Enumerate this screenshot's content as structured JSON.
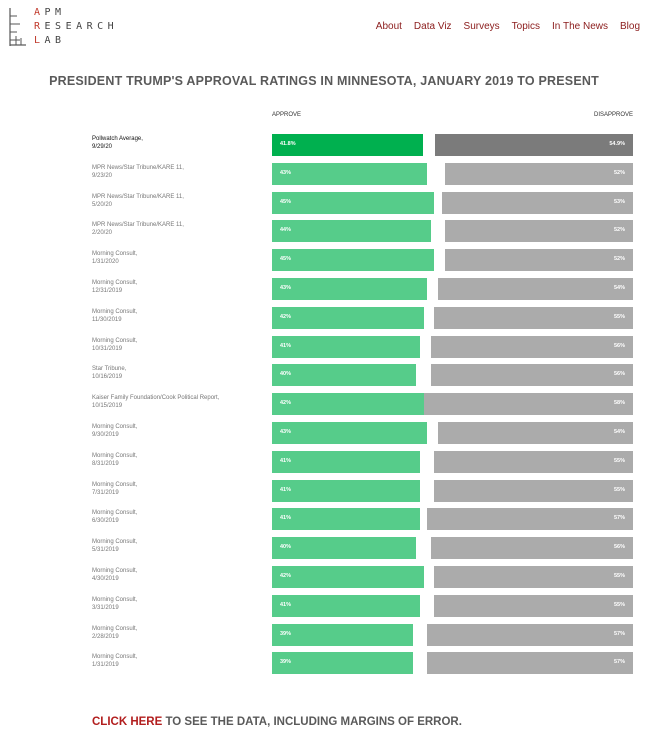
{
  "header": {
    "logo": {
      "line1": "APM",
      "line2": "RESEARCH",
      "line3": "LAB"
    },
    "nav": [
      {
        "label": "About"
      },
      {
        "label": "Data Viz"
      },
      {
        "label": "Surveys"
      },
      {
        "label": "Topics"
      },
      {
        "label": "In The News"
      },
      {
        "label": "Blog"
      }
    ]
  },
  "footer": {
    "link_text": "CLICK HERE",
    "rest_text": " TO SEE THE DATA, INCLUDING MARGINS OF ERROR."
  },
  "colors": {
    "approve": "#56cc8a",
    "approve_average": "#00b04f",
    "disapprove": "#ababab",
    "disapprove_average": "#7b7b7b",
    "nav": "#8b1c1c",
    "link": "#b21e1e"
  },
  "chart_data": {
    "type": "bar",
    "title": "PRESIDENT TRUMP'S APPROVAL RATINGS IN MINNESOTA, JANUARY 2019 TO PRESENT",
    "approve_label": "APPROVE",
    "disapprove_label": "DISAPPROVE",
    "scale_max": 100,
    "rows": [
      {
        "source": "Pollwatch Average,",
        "date": "9/29/20",
        "approve": 41.8,
        "disapprove": 54.9,
        "approve_text": "41.8%",
        "disapprove_text": "54.9%",
        "average": true
      },
      {
        "source": "MPR News/Star Tribune/KARE 11,",
        "date": "9/23/20",
        "approve": 43,
        "disapprove": 52,
        "approve_text": "43%",
        "disapprove_text": "52%"
      },
      {
        "source": "MPR News/Star Tribune/KARE 11,",
        "date": "5/20/20",
        "approve": 45,
        "disapprove": 53,
        "approve_text": "45%",
        "disapprove_text": "53%"
      },
      {
        "source": "MPR News/Star Tribune/KARE 11,",
        "date": "2/20/20",
        "approve": 44,
        "disapprove": 52,
        "approve_text": "44%",
        "disapprove_text": "52%"
      },
      {
        "source": "Morning Consult,",
        "date": "1/31/2020",
        "approve": 45,
        "disapprove": 52,
        "approve_text": "45%",
        "disapprove_text": "52%"
      },
      {
        "source": "Morning Consult,",
        "date": "12/31/2019",
        "approve": 43,
        "disapprove": 54,
        "approve_text": "43%",
        "disapprove_text": "54%"
      },
      {
        "source": "Morning Consult,",
        "date": "11/30/2019",
        "approve": 42,
        "disapprove": 55,
        "approve_text": "42%",
        "disapprove_text": "55%"
      },
      {
        "source": "Morning Consult,",
        "date": "10/31/2019",
        "approve": 41,
        "disapprove": 56,
        "approve_text": "41%",
        "disapprove_text": "56%"
      },
      {
        "source": "Star Tribune,",
        "date": "10/16/2019",
        "approve": 40,
        "disapprove": 56,
        "approve_text": "40%",
        "disapprove_text": "56%"
      },
      {
        "source": "Kaiser Family Foundation/Cook Political Report,",
        "date": "10/15/2019",
        "approve": 42,
        "disapprove": 58,
        "approve_text": "42%",
        "disapprove_text": "58%"
      },
      {
        "source": "Morning Consult,",
        "date": "9/30/2019",
        "approve": 43,
        "disapprove": 54,
        "approve_text": "43%",
        "disapprove_text": "54%"
      },
      {
        "source": "Morning Consult,",
        "date": "8/31/2019",
        "approve": 41,
        "disapprove": 55,
        "approve_text": "41%",
        "disapprove_text": "55%"
      },
      {
        "source": "Morning Consult,",
        "date": "7/31/2019",
        "approve": 41,
        "disapprove": 55,
        "approve_text": "41%",
        "disapprove_text": "55%"
      },
      {
        "source": "Morning Consult,",
        "date": "6/30/2019",
        "approve": 41,
        "disapprove": 57,
        "approve_text": "41%",
        "disapprove_text": "57%"
      },
      {
        "source": "Morning Consult,",
        "date": "5/31/2019",
        "approve": 40,
        "disapprove": 56,
        "approve_text": "40%",
        "disapprove_text": "56%"
      },
      {
        "source": "Morning Consult,",
        "date": "4/30/2019",
        "approve": 42,
        "disapprove": 55,
        "approve_text": "42%",
        "disapprove_text": "55%"
      },
      {
        "source": "Morning Consult,",
        "date": "3/31/2019",
        "approve": 41,
        "disapprove": 55,
        "approve_text": "41%",
        "disapprove_text": "55%"
      },
      {
        "source": "Morning Consult,",
        "date": "2/28/2019",
        "approve": 39,
        "disapprove": 57,
        "approve_text": "39%",
        "disapprove_text": "57%"
      },
      {
        "source": "Morning Consult,",
        "date": "1/31/2019",
        "approve": 39,
        "disapprove": 57,
        "approve_text": "39%",
        "disapprove_text": "57%"
      }
    ]
  }
}
